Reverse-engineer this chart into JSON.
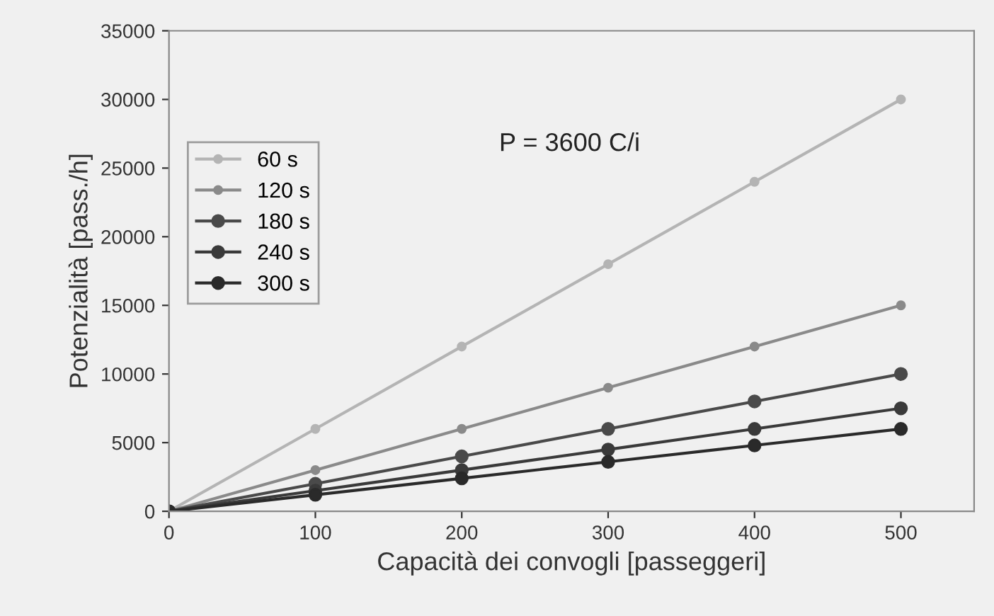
{
  "chart_data": {
    "type": "line",
    "xlabel": "Capacità dei convogli [passeggeri]",
    "ylabel": "Potenzialità [pass./h]",
    "annotations": [
      "P = 3600 C/i"
    ],
    "x": [
      0,
      100,
      200,
      300,
      400,
      500
    ],
    "series": [
      {
        "name": "60 s",
        "color": "#b4b4b4",
        "values": [
          0,
          6000,
          12000,
          18000,
          24000,
          30000
        ]
      },
      {
        "name": "120 s",
        "color": "#8a8a8a",
        "values": [
          0,
          3000,
          6000,
          9000,
          12000,
          15000
        ]
      },
      {
        "name": "180 s",
        "color": "#4a4a4a",
        "values": [
          0,
          2000,
          4000,
          6000,
          8000,
          10000
        ]
      },
      {
        "name": "240 s",
        "color": "#3a3a3a",
        "values": [
          0,
          1500,
          3000,
          4500,
          6000,
          7500
        ]
      },
      {
        "name": "300 s",
        "color": "#2a2a2a",
        "values": [
          0,
          1200,
          2400,
          3600,
          4800,
          6000
        ]
      }
    ],
    "xlim": [
      0,
      550
    ],
    "xticks": [
      0,
      100,
      200,
      300,
      400,
      500
    ],
    "ylim": [
      0,
      35000
    ],
    "yticks": [
      0,
      5000,
      10000,
      15000,
      20000,
      25000,
      30000,
      35000
    ],
    "grid": false,
    "legend": "left",
    "marker": "circle",
    "line_style": "solid"
  }
}
